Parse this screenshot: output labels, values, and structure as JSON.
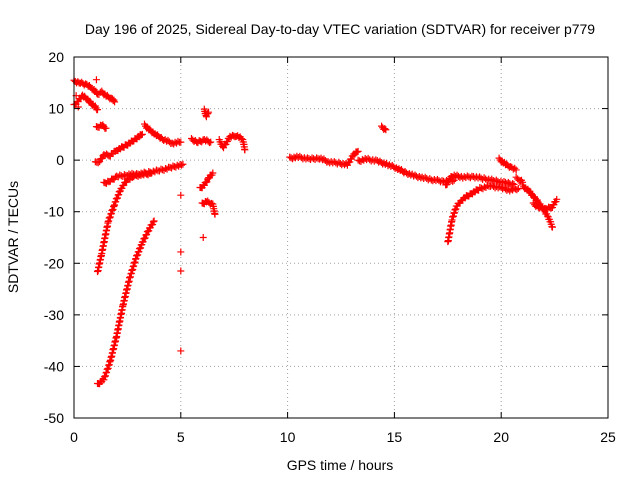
{
  "chart_data": {
    "type": "scatter",
    "title": "Day 196 of 2025, Sidereal Day-to-day VTEC variation (SDTVAR) for receiver p779",
    "xlabel": "GPS time / hours",
    "ylabel": "SDTVAR / TECUs",
    "xlim": [
      0,
      25
    ],
    "ylim": [
      -50,
      20
    ],
    "xticks": [
      0,
      5,
      10,
      15,
      20,
      25
    ],
    "yticks": [
      20,
      10,
      0,
      -10,
      -20,
      -30,
      -40,
      -50
    ],
    "grid": true,
    "marker": "+",
    "color": "#ff0000",
    "series": [
      {
        "name": "arc-early-high",
        "points": [
          [
            0.0,
            15.3
          ],
          [
            0.3,
            15.0
          ],
          [
            0.6,
            14.6
          ],
          [
            0.9,
            13.8
          ],
          [
            1.1,
            12.8
          ],
          [
            1.3,
            13.2
          ],
          [
            1.5,
            12.5
          ],
          [
            1.8,
            11.8
          ],
          [
            1.9,
            11.3
          ]
        ]
      },
      {
        "name": "arc-early-mid",
        "points": [
          [
            0.0,
            10.6
          ],
          [
            0.2,
            11.5
          ],
          [
            0.4,
            12.5
          ],
          [
            0.6,
            11.9
          ],
          [
            0.8,
            11.0
          ],
          [
            1.0,
            10.3
          ],
          [
            1.1,
            9.8
          ]
        ]
      },
      {
        "name": "arc-1",
        "points": [
          [
            1.05,
            6.3
          ],
          [
            1.3,
            6.8
          ],
          [
            1.5,
            6.2
          ]
        ]
      },
      {
        "name": "arc-2",
        "points": [
          [
            1.0,
            -0.5
          ],
          [
            1.2,
            -0.2
          ],
          [
            1.4,
            1.0
          ],
          [
            1.7,
            1.0
          ],
          [
            2.0,
            1.9
          ],
          [
            2.4,
            2.8
          ],
          [
            2.8,
            3.8
          ],
          [
            3.0,
            4.5
          ],
          [
            3.2,
            5.0
          ]
        ]
      },
      {
        "name": "arc-3",
        "points": [
          [
            3.3,
            6.8
          ],
          [
            3.5,
            6.0
          ],
          [
            3.8,
            5.0
          ],
          [
            4.2,
            4.0
          ],
          [
            4.6,
            3.3
          ],
          [
            5.0,
            3.5
          ]
        ]
      },
      {
        "name": "arc-4",
        "points": [
          [
            1.4,
            -4.5
          ],
          [
            1.7,
            -4.0
          ],
          [
            2.0,
            -3.2
          ],
          [
            2.5,
            -2.8
          ],
          [
            3.0,
            -2.7
          ],
          [
            3.5,
            -2.4
          ],
          [
            4.0,
            -2.0
          ],
          [
            4.5,
            -1.5
          ],
          [
            4.9,
            -1.0
          ],
          [
            5.1,
            -0.8
          ]
        ]
      },
      {
        "name": "arc-5",
        "points": [
          [
            1.1,
            -21.8
          ],
          [
            1.3,
            -18.0
          ],
          [
            1.6,
            -12.0
          ],
          [
            1.9,
            -8.5
          ],
          [
            2.2,
            -5.5
          ],
          [
            2.5,
            -3.8
          ],
          [
            2.8,
            -3.1
          ],
          [
            3.2,
            -2.8
          ],
          [
            3.6,
            -2.6
          ]
        ]
      },
      {
        "name": "arc-6",
        "points": [
          [
            1.1,
            -43.5
          ],
          [
            1.4,
            -42.5
          ],
          [
            1.7,
            -39.0
          ],
          [
            2.0,
            -34.0
          ],
          [
            2.3,
            -28.0
          ],
          [
            2.6,
            -23.0
          ],
          [
            2.9,
            -19.0
          ],
          [
            3.2,
            -16.0
          ],
          [
            3.5,
            -13.5
          ],
          [
            3.75,
            -11.8
          ]
        ]
      },
      {
        "name": "arc-7",
        "points": [
          [
            5.5,
            4.0
          ],
          [
            5.8,
            3.5
          ],
          [
            6.1,
            3.9
          ],
          [
            6.4,
            3.5
          ]
        ]
      },
      {
        "name": "arc-8",
        "points": [
          [
            6.1,
            9.7
          ],
          [
            6.2,
            8.5
          ],
          [
            6.3,
            9.3
          ]
        ]
      },
      {
        "name": "arc-9",
        "points": [
          [
            5.9,
            -5.5
          ],
          [
            6.1,
            -4.8
          ],
          [
            6.3,
            -3.5
          ],
          [
            6.5,
            -2.5
          ]
        ]
      },
      {
        "name": "arc-10",
        "points": [
          [
            6.0,
            -8.5
          ],
          [
            6.2,
            -8.0
          ],
          [
            6.5,
            -8.6
          ],
          [
            6.6,
            -10.5
          ]
        ]
      },
      {
        "name": "arc-11",
        "points": [
          [
            6.8,
            3.8
          ],
          [
            7.0,
            2.5
          ],
          [
            7.3,
            4.5
          ],
          [
            7.6,
            4.8
          ],
          [
            7.9,
            4.0
          ],
          [
            8.0,
            2.0
          ]
        ]
      },
      {
        "name": "arc-12",
        "points": [
          [
            10.1,
            0.4
          ],
          [
            10.5,
            0.6
          ],
          [
            11.0,
            0.2
          ],
          [
            11.5,
            0.4
          ],
          [
            11.9,
            -0.3
          ],
          [
            12.4,
            -0.6
          ],
          [
            12.8,
            -0.9
          ],
          [
            13.1,
            1.1
          ],
          [
            13.3,
            1.7
          ]
        ]
      },
      {
        "name": "arc-13",
        "points": [
          [
            13.3,
            -0.2
          ],
          [
            13.7,
            0.2
          ],
          [
            14.2,
            -0.2
          ],
          [
            14.7,
            -0.9
          ],
          [
            15.1,
            -1.5
          ],
          [
            15.5,
            -2.4
          ],
          [
            15.9,
            -3.0
          ],
          [
            16.3,
            -3.4
          ],
          [
            16.8,
            -3.8
          ],
          [
            17.3,
            -4.1
          ],
          [
            17.8,
            -3.9
          ]
        ]
      },
      {
        "name": "arc-14",
        "points": [
          [
            14.4,
            6.4
          ],
          [
            14.6,
            5.9
          ]
        ]
      },
      {
        "name": "arc-15",
        "points": [
          [
            17.4,
            -5.0
          ],
          [
            17.6,
            -3.5
          ],
          [
            17.8,
            -3.0
          ],
          [
            18.2,
            -3.3
          ],
          [
            18.7,
            -3.2
          ],
          [
            19.2,
            -3.6
          ],
          [
            19.7,
            -4.0
          ],
          [
            20.2,
            -4.4
          ],
          [
            20.6,
            -4.7
          ]
        ]
      },
      {
        "name": "arc-16",
        "points": [
          [
            17.5,
            -16.0
          ],
          [
            17.7,
            -11.5
          ],
          [
            17.9,
            -9.0
          ],
          [
            18.2,
            -7.5
          ],
          [
            18.6,
            -6.5
          ],
          [
            19.0,
            -5.5
          ],
          [
            19.5,
            -5.0
          ],
          [
            20.0,
            -5.4
          ],
          [
            20.4,
            -5.8
          ],
          [
            20.8,
            -5.5
          ]
        ]
      },
      {
        "name": "arc-17",
        "points": [
          [
            19.9,
            0.2
          ],
          [
            20.2,
            -0.8
          ],
          [
            20.5,
            -1.5
          ],
          [
            20.7,
            -1.9
          ]
        ]
      },
      {
        "name": "arc-18",
        "points": [
          [
            20.7,
            -3.5
          ],
          [
            20.9,
            -3.9
          ],
          [
            21.0,
            -4.3
          ]
        ]
      },
      {
        "name": "arc-19",
        "points": [
          [
            21.0,
            -5.0
          ],
          [
            21.3,
            -6.0
          ],
          [
            21.6,
            -7.5
          ],
          [
            21.9,
            -9.0
          ],
          [
            22.2,
            -11.0
          ],
          [
            22.4,
            -13.0
          ]
        ]
      },
      {
        "name": "arc-20",
        "points": [
          [
            21.5,
            -8.5
          ],
          [
            21.8,
            -9.2
          ],
          [
            22.1,
            -9.5
          ],
          [
            22.4,
            -9.0
          ],
          [
            22.6,
            -7.6
          ]
        ]
      },
      {
        "name": "scattered",
        "points": [
          [
            1.05,
            15.6
          ],
          [
            5.0,
            -6.8
          ],
          [
            5.0,
            -17.8
          ],
          [
            5.0,
            -21.5
          ],
          [
            5.0,
            -37.0
          ],
          [
            6.05,
            -15.0
          ],
          [
            0.1,
            12.5
          ],
          [
            0.2,
            10.3
          ]
        ]
      }
    ]
  }
}
